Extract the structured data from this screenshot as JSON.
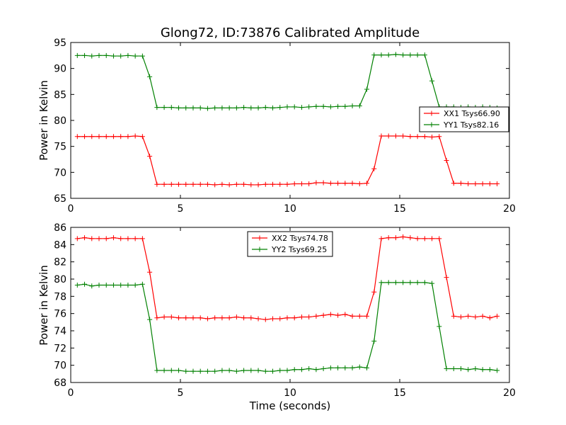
{
  "chart_data": [
    {
      "type": "line",
      "title": "Glong72, ID:73876 Calibrated Amplitude",
      "xlabel": "",
      "ylabel": "Power in Kelvin",
      "xlim": [
        0,
        20
      ],
      "ylim": [
        65,
        95
      ],
      "xticks": [
        "0",
        "5",
        "10",
        "15",
        "20"
      ],
      "yticks": [
        "65",
        "70",
        "75",
        "80",
        "85",
        "90",
        "95"
      ],
      "legend_position": "center-right",
      "x": [
        0.3,
        0.63,
        0.96,
        1.29,
        1.62,
        1.95,
        2.28,
        2.61,
        2.94,
        3.27,
        3.6,
        3.93,
        4.26,
        4.59,
        4.92,
        5.25,
        5.58,
        5.91,
        6.24,
        6.57,
        6.9,
        7.23,
        7.56,
        7.89,
        8.22,
        8.55,
        8.88,
        9.21,
        9.54,
        9.87,
        10.2,
        10.53,
        10.86,
        11.19,
        11.52,
        11.85,
        12.18,
        12.51,
        12.84,
        13.17,
        13.5,
        13.83,
        14.16,
        14.49,
        14.82,
        15.15,
        15.48,
        15.81,
        16.14,
        16.47,
        16.8,
        17.13,
        17.46,
        17.79,
        18.12,
        18.45,
        18.78,
        19.11,
        19.44
      ],
      "series": [
        {
          "name": "XX1 Tsys66.90",
          "color": "#ff0000",
          "values": [
            76.9,
            76.9,
            76.9,
            76.9,
            76.9,
            76.9,
            76.9,
            76.9,
            77.0,
            76.9,
            73.1,
            67.7,
            67.7,
            67.7,
            67.7,
            67.7,
            67.7,
            67.7,
            67.7,
            67.6,
            67.7,
            67.6,
            67.7,
            67.7,
            67.6,
            67.6,
            67.7,
            67.7,
            67.7,
            67.7,
            67.8,
            67.8,
            67.8,
            68.0,
            68.0,
            67.9,
            67.9,
            67.9,
            67.9,
            67.8,
            67.9,
            70.7,
            77.0,
            77.0,
            77.0,
            77.0,
            76.9,
            76.9,
            76.9,
            76.8,
            76.9,
            72.3,
            67.9,
            67.9,
            67.8,
            67.8,
            67.8,
            67.8,
            67.8
          ]
        },
        {
          "name": "YY1 Tsys82.16",
          "color": "#008000",
          "values": [
            92.5,
            92.5,
            92.4,
            92.5,
            92.5,
            92.4,
            92.4,
            92.5,
            92.4,
            92.4,
            88.4,
            82.5,
            82.5,
            82.5,
            82.4,
            82.4,
            82.4,
            82.4,
            82.3,
            82.4,
            82.4,
            82.4,
            82.4,
            82.5,
            82.4,
            82.4,
            82.5,
            82.4,
            82.5,
            82.6,
            82.6,
            82.5,
            82.6,
            82.7,
            82.7,
            82.6,
            82.7,
            82.7,
            82.8,
            82.8,
            86.0,
            92.6,
            92.6,
            92.6,
            92.7,
            92.6,
            92.6,
            92.6,
            92.6,
            87.6,
            82.6,
            82.6,
            82.6,
            82.5,
            82.6,
            82.5,
            82.6,
            82.5,
            82.4
          ]
        }
      ]
    },
    {
      "type": "line",
      "title": "",
      "xlabel": "Time (seconds)",
      "ylabel": "Power in Kelvin",
      "xlim": [
        0,
        20
      ],
      "ylim": [
        68,
        86
      ],
      "xticks": [
        "0",
        "5",
        "10",
        "15",
        "20"
      ],
      "yticks": [
        "68",
        "70",
        "72",
        "74",
        "76",
        "78",
        "80",
        "82",
        "84",
        "86"
      ],
      "legend_position": "top-center",
      "x": [
        0.3,
        0.63,
        0.96,
        1.29,
        1.62,
        1.95,
        2.28,
        2.61,
        2.94,
        3.27,
        3.6,
        3.93,
        4.26,
        4.59,
        4.92,
        5.25,
        5.58,
        5.91,
        6.24,
        6.57,
        6.9,
        7.23,
        7.56,
        7.89,
        8.22,
        8.55,
        8.88,
        9.21,
        9.54,
        9.87,
        10.2,
        10.53,
        10.86,
        11.19,
        11.52,
        11.85,
        12.18,
        12.51,
        12.84,
        13.17,
        13.5,
        13.83,
        14.16,
        14.49,
        14.82,
        15.15,
        15.48,
        15.81,
        16.14,
        16.47,
        16.8,
        17.13,
        17.46,
        17.79,
        18.12,
        18.45,
        18.78,
        19.11,
        19.44
      ],
      "series": [
        {
          "name": "XX2 Tsys74.78",
          "color": "#ff0000",
          "values": [
            84.7,
            84.8,
            84.7,
            84.7,
            84.7,
            84.8,
            84.7,
            84.7,
            84.7,
            84.7,
            80.8,
            75.5,
            75.6,
            75.6,
            75.5,
            75.5,
            75.5,
            75.5,
            75.4,
            75.5,
            75.5,
            75.5,
            75.6,
            75.5,
            75.5,
            75.4,
            75.3,
            75.4,
            75.4,
            75.5,
            75.5,
            75.6,
            75.6,
            75.7,
            75.8,
            75.9,
            75.8,
            75.9,
            75.7,
            75.7,
            75.7,
            78.5,
            84.7,
            84.8,
            84.8,
            84.9,
            84.8,
            84.7,
            84.7,
            84.7,
            84.7,
            80.2,
            75.7,
            75.6,
            75.7,
            75.6,
            75.7,
            75.5,
            75.7
          ]
        },
        {
          "name": "YY2 Tsys69.25",
          "color": "#008000",
          "values": [
            79.3,
            79.4,
            79.2,
            79.3,
            79.3,
            79.3,
            79.3,
            79.3,
            79.3,
            79.4,
            75.3,
            69.4,
            69.4,
            69.4,
            69.4,
            69.3,
            69.3,
            69.3,
            69.3,
            69.3,
            69.4,
            69.4,
            69.3,
            69.4,
            69.4,
            69.4,
            69.3,
            69.3,
            69.4,
            69.4,
            69.5,
            69.5,
            69.6,
            69.5,
            69.6,
            69.7,
            69.7,
            69.7,
            69.7,
            69.8,
            69.7,
            72.8,
            79.6,
            79.6,
            79.6,
            79.6,
            79.6,
            79.6,
            79.6,
            79.5,
            74.5,
            69.6,
            69.6,
            69.6,
            69.5,
            69.6,
            69.5,
            69.5,
            69.4
          ]
        }
      ]
    }
  ]
}
